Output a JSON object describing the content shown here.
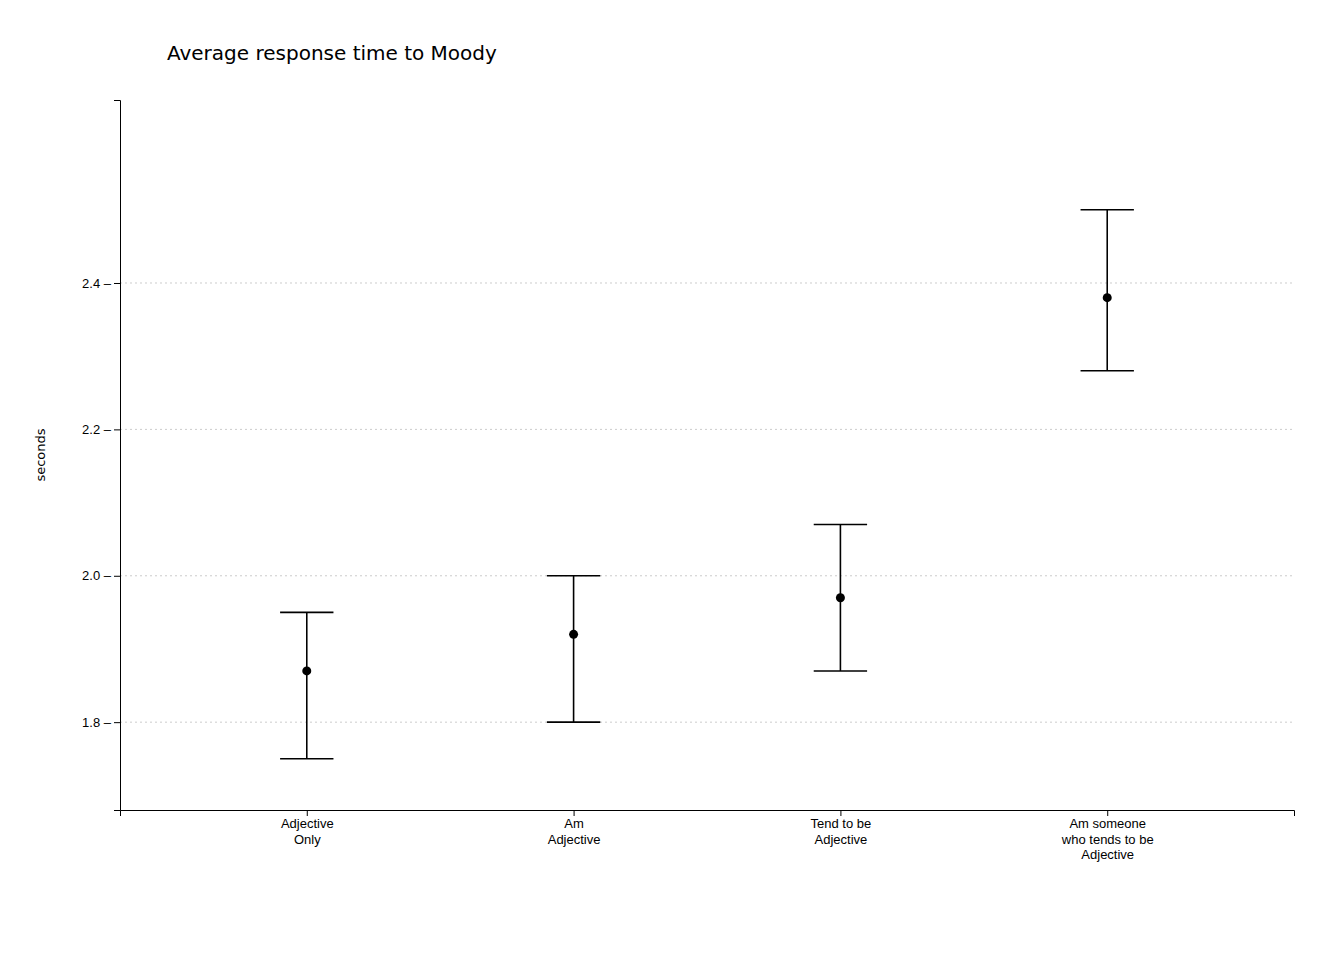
{
  "chart_data": {
    "type": "errorbar",
    "title": "Average response time to Moody",
    "ylabel": "seconds",
    "categories": [
      "Adjective\nOnly",
      "Am\nAdjective",
      "Tend to be\nAdjective",
      "Am someone\nwho tends to be\nAdjective"
    ],
    "values": [
      1.87,
      1.92,
      1.97,
      2.38
    ],
    "lower": [
      1.75,
      1.8,
      1.87,
      2.28
    ],
    "upper": [
      1.95,
      2.0,
      2.07,
      2.5
    ],
    "color": "#000000",
    "ylim": [
      1.68,
      2.65
    ],
    "yticks": [
      {
        "value": 1.8,
        "label": "1.8 –"
      },
      {
        "value": 2.0,
        "label": "2.0 –"
      },
      {
        "value": 2.2,
        "label": "2.2 –"
      },
      {
        "value": 2.4,
        "label": "2.4 –"
      }
    ],
    "grid": true
  }
}
